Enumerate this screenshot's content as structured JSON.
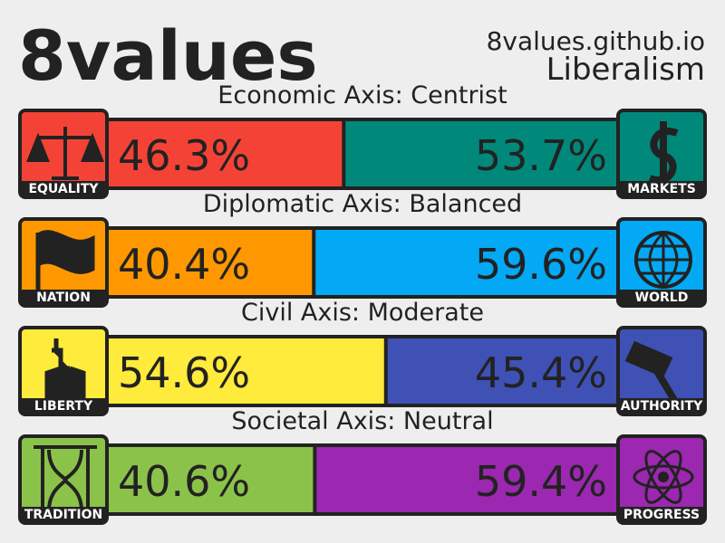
{
  "chart_data": {
    "type": "stacked-bar",
    "title": "8values",
    "subtitle": "8values.github.io",
    "ideology": "Liberalism",
    "axes": [
      {
        "title": "Economic Axis: Centrist",
        "series": [
          {
            "name": "EQUALITY",
            "color": "#f44336",
            "value": 46.3,
            "value_label": "46.3%"
          },
          {
            "name": "MARKETS",
            "color": "#00897b",
            "value": 53.7,
            "value_label": "53.7%"
          }
        ]
      },
      {
        "title": "Diplomatic Axis: Balanced",
        "series": [
          {
            "name": "NATION",
            "color": "#ff9800",
            "value": 40.4,
            "value_label": "40.4%"
          },
          {
            "name": "WORLD",
            "color": "#03a9f4",
            "value": 59.6,
            "value_label": "59.6%"
          }
        ]
      },
      {
        "title": "Civil Axis: Moderate",
        "series": [
          {
            "name": "LIBERTY",
            "color": "#ffeb3b",
            "value": 54.6,
            "value_label": "54.6%"
          },
          {
            "name": "AUTHORITY",
            "color": "#3f51b5",
            "value": 45.4,
            "value_label": "45.4%"
          }
        ]
      },
      {
        "title": "Societal Axis: Neutral",
        "series": [
          {
            "name": "TRADITION",
            "color": "#8bc34a",
            "value": 40.6,
            "value_label": "40.6%"
          },
          {
            "name": "PROGRESS",
            "color": "#9c27b0",
            "value": 59.4,
            "value_label": "59.4%"
          }
        ]
      }
    ]
  }
}
